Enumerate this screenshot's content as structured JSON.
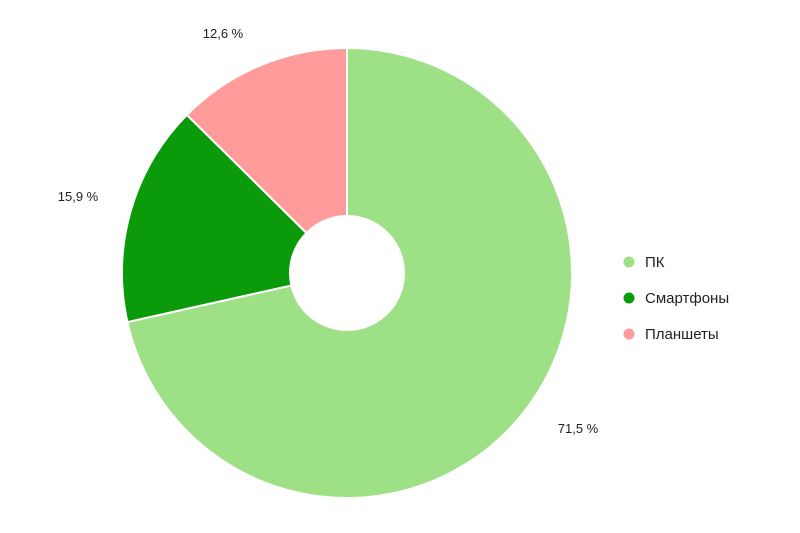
{
  "chart_data": {
    "type": "pie",
    "donut": true,
    "slices": [
      {
        "label": "ПК",
        "value": 71.5,
        "display": "71,5 %",
        "color": "#9de085"
      },
      {
        "label": "Смартфоны",
        "value": 15.9,
        "display": "15,9 %",
        "color": "#0a9a0a"
      },
      {
        "label": "Планшеты",
        "value": 12.6,
        "display": "12,6 %",
        "color": "#ff9b9b"
      }
    ],
    "legend_position": "right"
  }
}
